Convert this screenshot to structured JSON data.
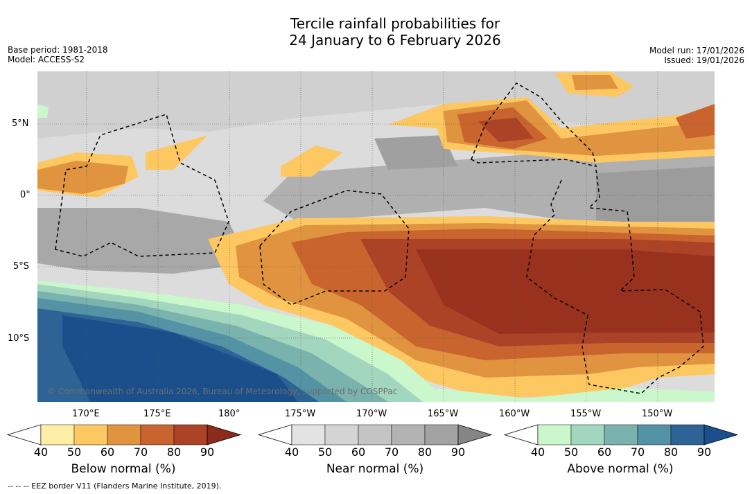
{
  "title_line1": "Tercile rainfall probabilities for",
  "title_line2": "24 January to 6 February 2026",
  "base_period": "Base period: 1981-2018",
  "model": "Model: ACCESS-S2",
  "model_run": "Model run: 17/01/2026",
  "issued": "Issued: 19/01/2026",
  "copyright": "© Commonwealth of Australia 2026, Bureau of Meteorology, supported by COSPPac",
  "eez_note": "--  --  -- EEZ border V11 (Flanders Marine Institute, 2019).",
  "map": {
    "lat_labels": [
      "5°N",
      "0°",
      "5°S",
      "10°S"
    ],
    "lon_labels": [
      "170°E",
      "175°E",
      "180°",
      "175°W",
      "170°W",
      "165°W",
      "160°W",
      "155°W",
      "150°W"
    ]
  },
  "colorbars": [
    {
      "label": "Below normal (%)",
      "ticks": [
        "40",
        "50",
        "60",
        "70",
        "80",
        "90"
      ],
      "colors": [
        "#ffffff",
        "#ffeea6",
        "#fdc862",
        "#e0943f",
        "#c9642e",
        "#ad4326",
        "#8b2b1b"
      ]
    },
    {
      "label": "Near normal (%)",
      "ticks": [
        "40",
        "50",
        "60",
        "70",
        "80",
        "90"
      ],
      "colors": [
        "#ffffff",
        "#e3e3e3",
        "#d4d4d4",
        "#c4c4c4",
        "#b3b3b3",
        "#a3a3a3",
        "#858585"
      ]
    },
    {
      "label": "Above normal (%)",
      "ticks": [
        "40",
        "50",
        "60",
        "70",
        "80",
        "90"
      ],
      "colors": [
        "#ffffff",
        "#caf7cc",
        "#a3d6be",
        "#7ab3ad",
        "#5493a5",
        "#2e6395",
        "#1a4f8c"
      ]
    }
  ]
}
